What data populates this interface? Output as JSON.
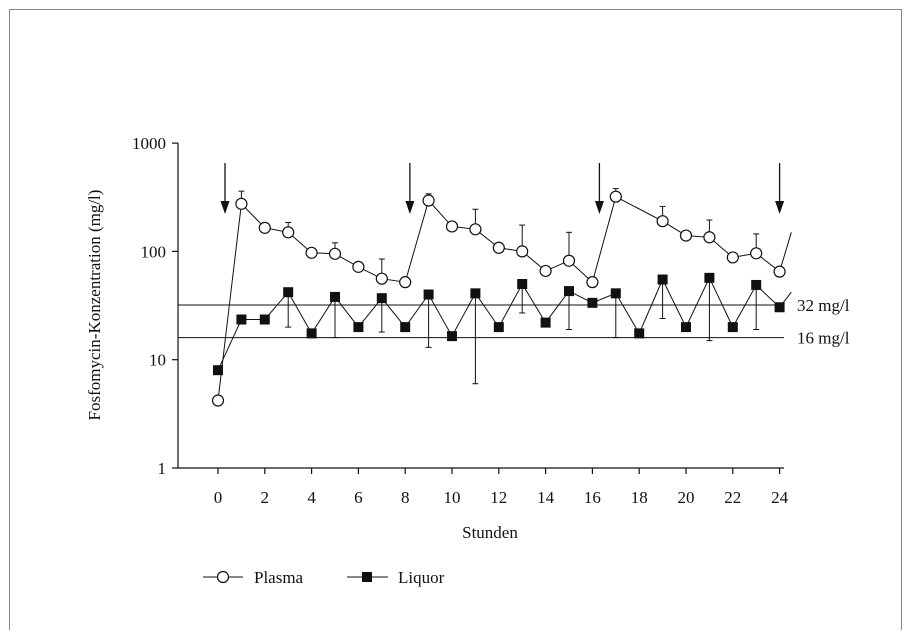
{
  "chart_data": {
    "type": "line",
    "ylabel": "Fosfomycin-Konzentration (mg/l)",
    "xlabel": "Stunden",
    "yscale": "log",
    "ylim": [
      1,
      1000
    ],
    "xlim": [
      -2,
      24
    ],
    "yticks": [
      1,
      10,
      100,
      1000
    ],
    "ytick_labels": [
      "1",
      "10",
      "100",
      "1000"
    ],
    "xticks": [
      0,
      2,
      4,
      6,
      8,
      10,
      12,
      14,
      16,
      18,
      20,
      22,
      24
    ],
    "xtick_labels": [
      "0",
      "2",
      "4",
      "6",
      "8",
      "10",
      "12",
      "14",
      "16",
      "18",
      "20",
      "22",
      "24"
    ],
    "legend_position": "bottom-left",
    "grid": false,
    "dose_arrows_x": [
      0.3,
      8.2,
      16.3,
      24.0
    ],
    "thresholds": [
      {
        "value": 32,
        "label": "32 mg/l"
      },
      {
        "value": 16,
        "label": "16 mg/l"
      }
    ],
    "series": [
      {
        "name": "Plasma",
        "marker": "open-circle",
        "points": [
          {
            "x": 0,
            "y": 4.2
          },
          {
            "x": 1,
            "y": 275,
            "err": 360
          },
          {
            "x": 2,
            "y": 165
          },
          {
            "x": 3,
            "y": 150,
            "err": 185
          },
          {
            "x": 4,
            "y": 97
          },
          {
            "x": 5,
            "y": 95,
            "err": 120
          },
          {
            "x": 6,
            "y": 72
          },
          {
            "x": 7,
            "y": 56,
            "err": 85
          },
          {
            "x": 8,
            "y": 52
          },
          {
            "x": 9,
            "y": 295,
            "err": 340
          },
          {
            "x": 10,
            "y": 170
          },
          {
            "x": 11,
            "y": 160,
            "err": 245
          },
          {
            "x": 12,
            "y": 108
          },
          {
            "x": 13,
            "y": 100,
            "err": 175
          },
          {
            "x": 14,
            "y": 66
          },
          {
            "x": 15,
            "y": 82,
            "err": 150
          },
          {
            "x": 16,
            "y": 52
          },
          {
            "x": 17,
            "y": 320,
            "err": 380
          },
          {
            "x": 19,
            "y": 190,
            "err": 260
          },
          {
            "x": 20,
            "y": 140
          },
          {
            "x": 21,
            "y": 135,
            "err": 195
          },
          {
            "x": 22,
            "y": 88
          },
          {
            "x": 23,
            "y": 96,
            "err": 145
          },
          {
            "x": 24,
            "y": 65
          },
          {
            "x": 24.5,
            "y": 150
          }
        ]
      },
      {
        "name": "Liquor",
        "marker": "filled-square",
        "points": [
          {
            "x": 0,
            "y": 8
          },
          {
            "x": 1,
            "y": 23.5
          },
          {
            "x": 2,
            "y": 23.5
          },
          {
            "x": 3,
            "y": 42,
            "err": 20
          },
          {
            "x": 4,
            "y": 17.5
          },
          {
            "x": 5,
            "y": 38,
            "err": 16
          },
          {
            "x": 6,
            "y": 20
          },
          {
            "x": 7,
            "y": 37,
            "err": 18
          },
          {
            "x": 8,
            "y": 20
          },
          {
            "x": 9,
            "y": 40,
            "err": 13
          },
          {
            "x": 10,
            "y": 16.5
          },
          {
            "x": 11,
            "y": 41,
            "err": 6
          },
          {
            "x": 12,
            "y": 20
          },
          {
            "x": 13,
            "y": 50,
            "err": 27
          },
          {
            "x": 14,
            "y": 22
          },
          {
            "x": 15,
            "y": 43,
            "err": 19
          },
          {
            "x": 16,
            "y": 33.5
          },
          {
            "x": 17,
            "y": 41,
            "err": 16
          },
          {
            "x": 18,
            "y": 17.5
          },
          {
            "x": 19,
            "y": 55,
            "err": 24
          },
          {
            "x": 20,
            "y": 20
          },
          {
            "x": 21,
            "y": 57,
            "err": 15
          },
          {
            "x": 22,
            "y": 20
          },
          {
            "x": 23,
            "y": 49,
            "err": 19
          },
          {
            "x": 24,
            "y": 30.5
          },
          {
            "x": 24.5,
            "y": 42
          }
        ]
      }
    ]
  }
}
